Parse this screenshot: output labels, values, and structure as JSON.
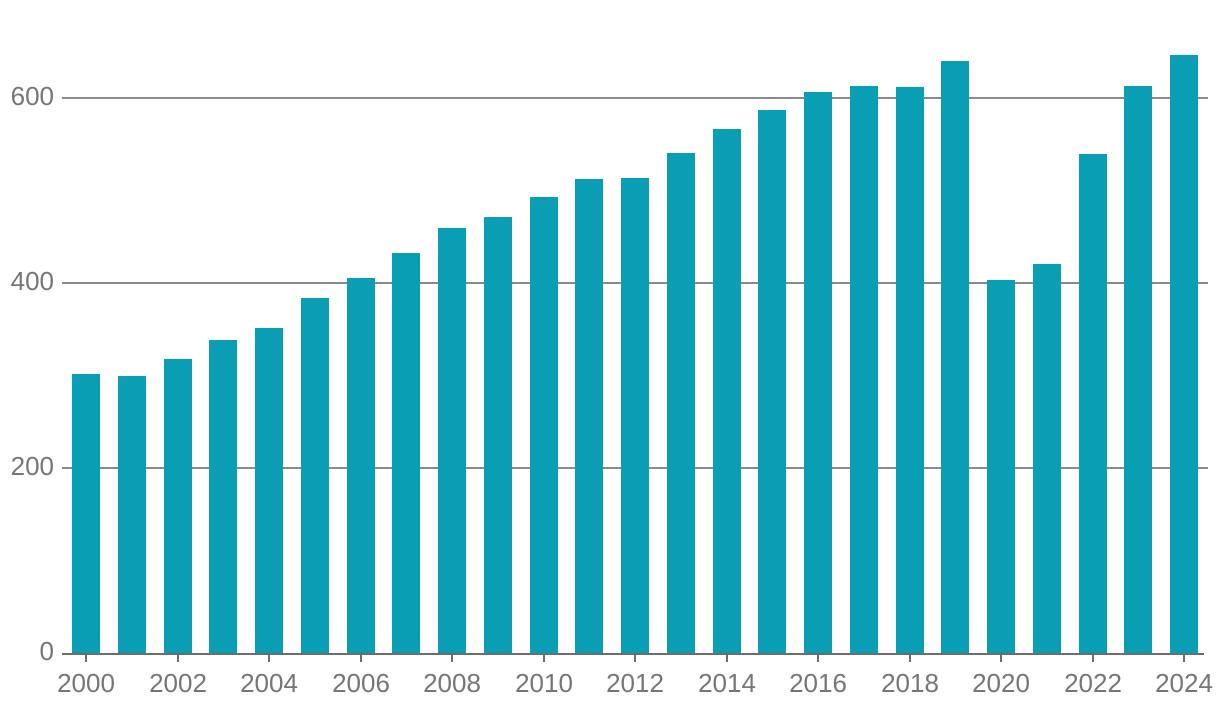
{
  "chart_data": {
    "type": "bar",
    "x": [
      2000,
      2001,
      2002,
      2003,
      2004,
      2005,
      2006,
      2007,
      2008,
      2009,
      2010,
      2011,
      2012,
      2013,
      2014,
      2015,
      2016,
      2017,
      2018,
      2019,
      2020,
      2021,
      2022,
      2023,
      2024
    ],
    "values": [
      302,
      299,
      318,
      338,
      351,
      384,
      405,
      432,
      459,
      471,
      493,
      512,
      514,
      541,
      567,
      587,
      607,
      613,
      612,
      640,
      403,
      421,
      539,
      613,
      646
    ],
    "y_ticks": [
      0,
      200,
      400,
      600
    ],
    "y_tick_labels": [
      "0",
      "200",
      "400",
      "600"
    ],
    "x_tick_years": [
      2000,
      2002,
      2004,
      2006,
      2008,
      2010,
      2012,
      2014,
      2016,
      2018,
      2020,
      2022,
      2024
    ],
    "x_tick_labels": [
      "2000",
      "2002",
      "2004",
      "2006",
      "2008",
      "2010",
      "2012",
      "2014",
      "2016",
      "2018",
      "2020",
      "2022",
      "2024"
    ],
    "ylim": [
      0,
      660
    ],
    "grid": "horizontal",
    "legend": "none",
    "colors": {
      "bar": "#0a9eb4",
      "gridline": "#8a8a8a",
      "axis": "#6d6d6d",
      "tick_label": "#767676",
      "background": "#ffffff"
    }
  }
}
